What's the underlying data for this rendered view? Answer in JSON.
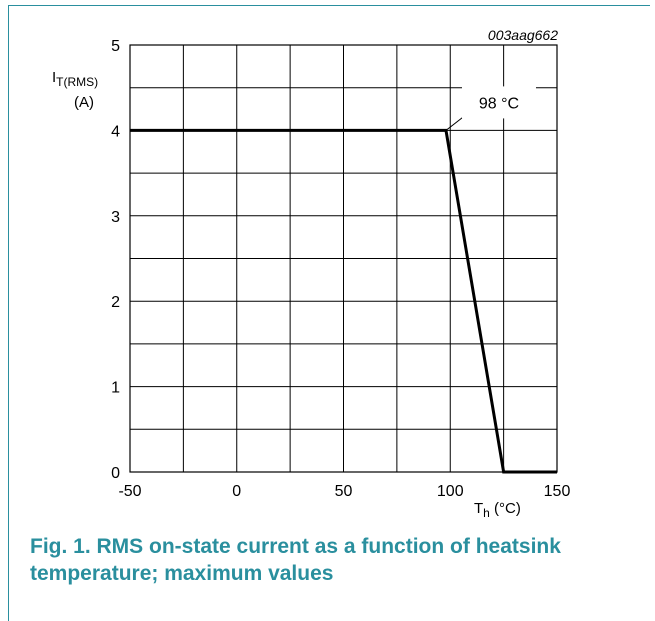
{
  "figure_code": "003aag662",
  "caption": {
    "line1": "Fig. 1. RMS on-state current as a function of heatsink",
    "line2": "temperature; maximum values"
  },
  "annotation": "98 °C",
  "colors": {
    "accent": "#2a8f9e",
    "line": "#000000",
    "grid": "#000000"
  },
  "chart_data": {
    "type": "line",
    "title": "",
    "xlabel": {
      "main": "T",
      "sub": "h",
      "unit": " (°C)"
    },
    "ylabel": {
      "main": "I",
      "sub": "T(RMS)",
      "unit": "(A)"
    },
    "xlim": [
      -50,
      150
    ],
    "ylim": [
      0,
      5
    ],
    "x_ticks": [
      -50,
      0,
      50,
      100,
      150
    ],
    "x_tick_labels": [
      "-50",
      "0",
      "50",
      "100",
      "150"
    ],
    "y_ticks": [
      0,
      1,
      2,
      3,
      4,
      5
    ],
    "y_tick_labels": [
      "0",
      "1",
      "2",
      "3",
      "4",
      "5"
    ],
    "grid": true,
    "series": [
      {
        "x": [
          -50,
          98,
          125,
          150
        ],
        "y": [
          4,
          4,
          0,
          0
        ]
      }
    ],
    "annotations": [
      {
        "text": "98 °C",
        "x": 98,
        "y": 4
      }
    ]
  }
}
